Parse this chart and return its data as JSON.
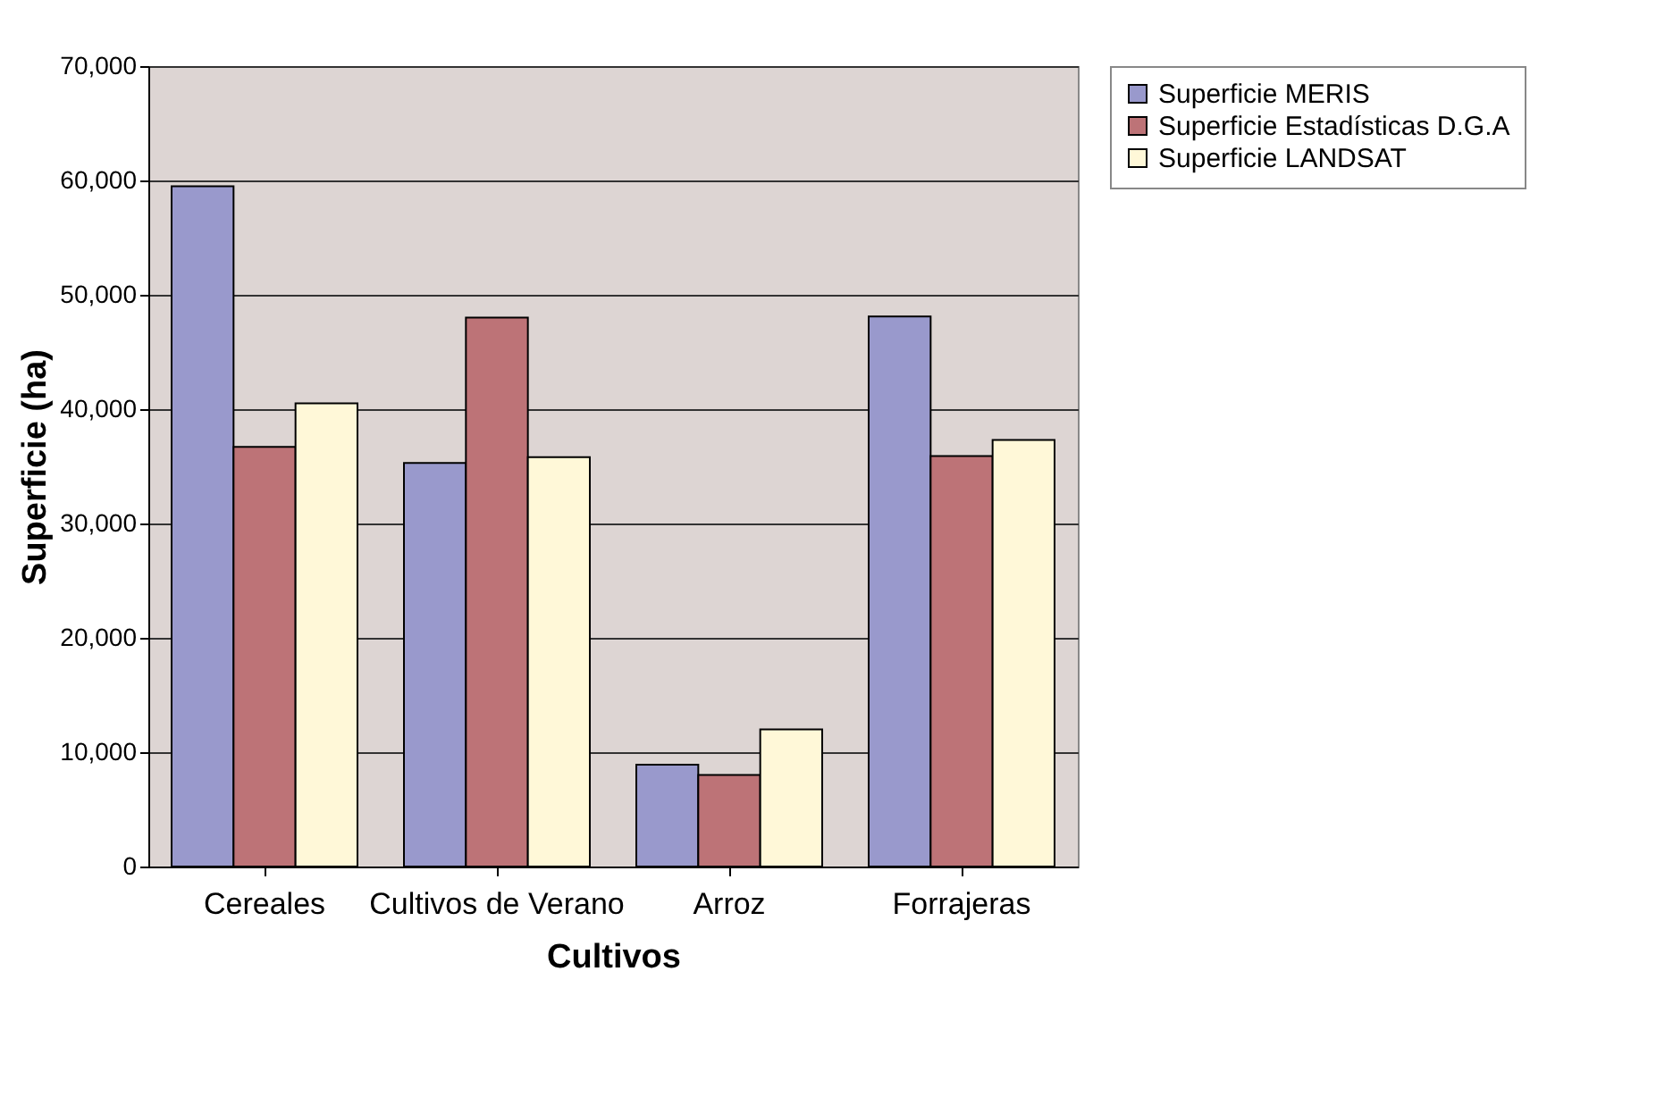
{
  "chart_data": {
    "type": "bar",
    "xlabel": "Cultivos",
    "ylabel": "Superficie (ha)",
    "categories": [
      "Cereales",
      "Cultivos de Verano",
      "Arroz",
      "Forrajeras"
    ],
    "series": [
      {
        "name": "Superficie MERIS",
        "color": "#9999cc",
        "values": [
          59500,
          35300,
          8900,
          48100
        ]
      },
      {
        "name": "Superficie Estadísticas D.G.A",
        "color": "#bd7377",
        "values": [
          36700,
          48000,
          8000,
          35900
        ]
      },
      {
        "name": "Superficie LANDSAT",
        "color": "#fff8d8",
        "values": [
          40500,
          35800,
          12000,
          37300
        ]
      }
    ],
    "ylim": [
      0,
      70000
    ],
    "yticks": [
      0,
      {
        "value": 10000,
        "label": "10,000"
      },
      {
        "value": 20000,
        "label": "20,000"
      },
      {
        "value": 30000,
        "label": "30,000"
      },
      {
        "value": 40000,
        "label": "40,000"
      },
      {
        "value": 50000,
        "label": "50,000"
      },
      {
        "value": 60000,
        "label": "60,000"
      },
      {
        "value": 70000,
        "label": "70,000"
      }
    ],
    "grid": "y",
    "legend": "right"
  }
}
